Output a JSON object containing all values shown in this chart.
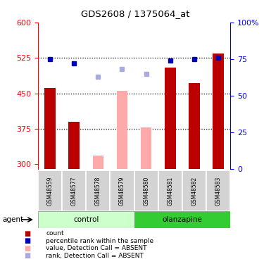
{
  "title": "GDS2608 / 1375064_at",
  "samples": [
    "GSM48559",
    "GSM48577",
    "GSM48578",
    "GSM48579",
    "GSM48580",
    "GSM48581",
    "GSM48582",
    "GSM48583"
  ],
  "groups_control": [
    0,
    1,
    2,
    3
  ],
  "groups_olanzapine": [
    4,
    5,
    6,
    7
  ],
  "bar_values": [
    462,
    390,
    null,
    null,
    null,
    505,
    472,
    535
  ],
  "bar_absent_values": [
    null,
    null,
    318,
    455,
    378,
    null,
    null,
    null
  ],
  "dot_pct_values": [
    75,
    72,
    null,
    null,
    null,
    74,
    75,
    76
  ],
  "dot_pct_absent": [
    null,
    null,
    63,
    68,
    65,
    null,
    null,
    null
  ],
  "ylim_left": [
    290,
    600
  ],
  "ylim_right": [
    0,
    100
  ],
  "yticks_left": [
    300,
    375,
    450,
    525,
    600
  ],
  "yticks_right": [
    0,
    25,
    50,
    75,
    100
  ],
  "hlines": [
    375,
    450,
    525
  ],
  "bar_color": "#bb0000",
  "bar_absent_color": "#ffaaaa",
  "dot_color": "#0000bb",
  "dot_absent_color": "#aaaadd",
  "control_bg_light": "#ccffcc",
  "olanzapine_bg": "#33cc33",
  "bar_width": 0.45
}
